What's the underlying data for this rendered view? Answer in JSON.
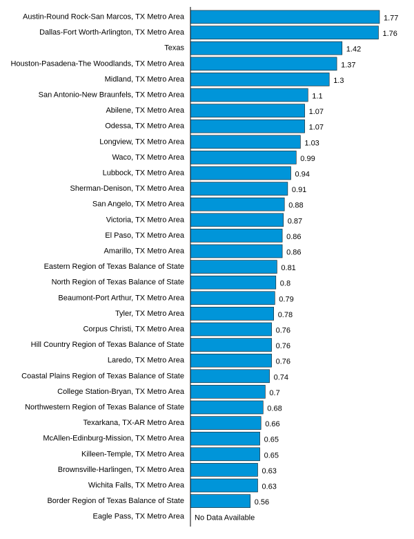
{
  "chart_data": {
    "type": "bar",
    "orientation": "horizontal",
    "title": "",
    "xlabel": "",
    "ylabel": "",
    "bar_color": "#0095D9",
    "grid": false,
    "legend": false,
    "xlim": [
      0,
      1.77
    ],
    "categories": [
      "Austin-Round Rock-San Marcos, TX Metro Area",
      "Dallas-Fort Worth-Arlington, TX Metro Area",
      "Texas",
      "Houston-Pasadena-The Woodlands, TX Metro Area",
      "Midland, TX Metro Area",
      "San Antonio-New Braunfels, TX Metro Area",
      "Abilene, TX Metro Area",
      "Odessa, TX Metro Area",
      "Longview, TX Metro Area",
      "Waco, TX Metro Area",
      "Lubbock, TX Metro Area",
      "Sherman-Denison, TX Metro Area",
      "San Angelo, TX Metro Area",
      "Victoria, TX Metro Area",
      "El Paso, TX Metro Area",
      "Amarillo, TX Metro Area",
      "Eastern Region of Texas Balance of State",
      "North Region of Texas Balance of State",
      "Beaumont-Port Arthur, TX Metro Area",
      "Tyler, TX Metro Area",
      "Corpus Christi, TX Metro Area",
      "Hill Country Region of Texas Balance of State",
      "Laredo, TX Metro Area",
      "Coastal Plains Region of Texas Balance of State",
      "College Station-Bryan, TX Metro Area",
      "Northwestern Region of Texas Balance of State",
      "Texarkana, TX-AR Metro Area",
      "McAllen-Edinburg-Mission, TX Metro Area",
      "Killeen-Temple, TX Metro Area",
      "Brownsville-Harlingen, TX Metro Area",
      "Wichita Falls, TX Metro Area",
      "Border Region of Texas Balance of State",
      "Eagle Pass, TX Metro Area"
    ],
    "values": [
      1.77,
      1.76,
      1.42,
      1.37,
      1.3,
      1.1,
      1.07,
      1.07,
      1.03,
      0.99,
      0.94,
      0.91,
      0.88,
      0.87,
      0.86,
      0.86,
      0.81,
      0.8,
      0.79,
      0.78,
      0.76,
      0.76,
      0.76,
      0.74,
      0.7,
      0.68,
      0.66,
      0.65,
      0.65,
      0.63,
      0.63,
      0.56,
      null
    ],
    "value_labels": [
      "1.77",
      "1.76",
      "1.42",
      "1.37",
      "1.3",
      "1.1",
      "1.07",
      "1.07",
      "1.03",
      "0.99",
      "0.94",
      "0.91",
      "0.88",
      "0.87",
      "0.86",
      "0.86",
      "0.81",
      "0.8",
      "0.79",
      "0.78",
      "0.76",
      "0.76",
      "0.76",
      "0.74",
      "0.7",
      "0.68",
      "0.66",
      "0.65",
      "0.65",
      "0.63",
      "0.63",
      "0.56",
      "No Data Available"
    ]
  }
}
